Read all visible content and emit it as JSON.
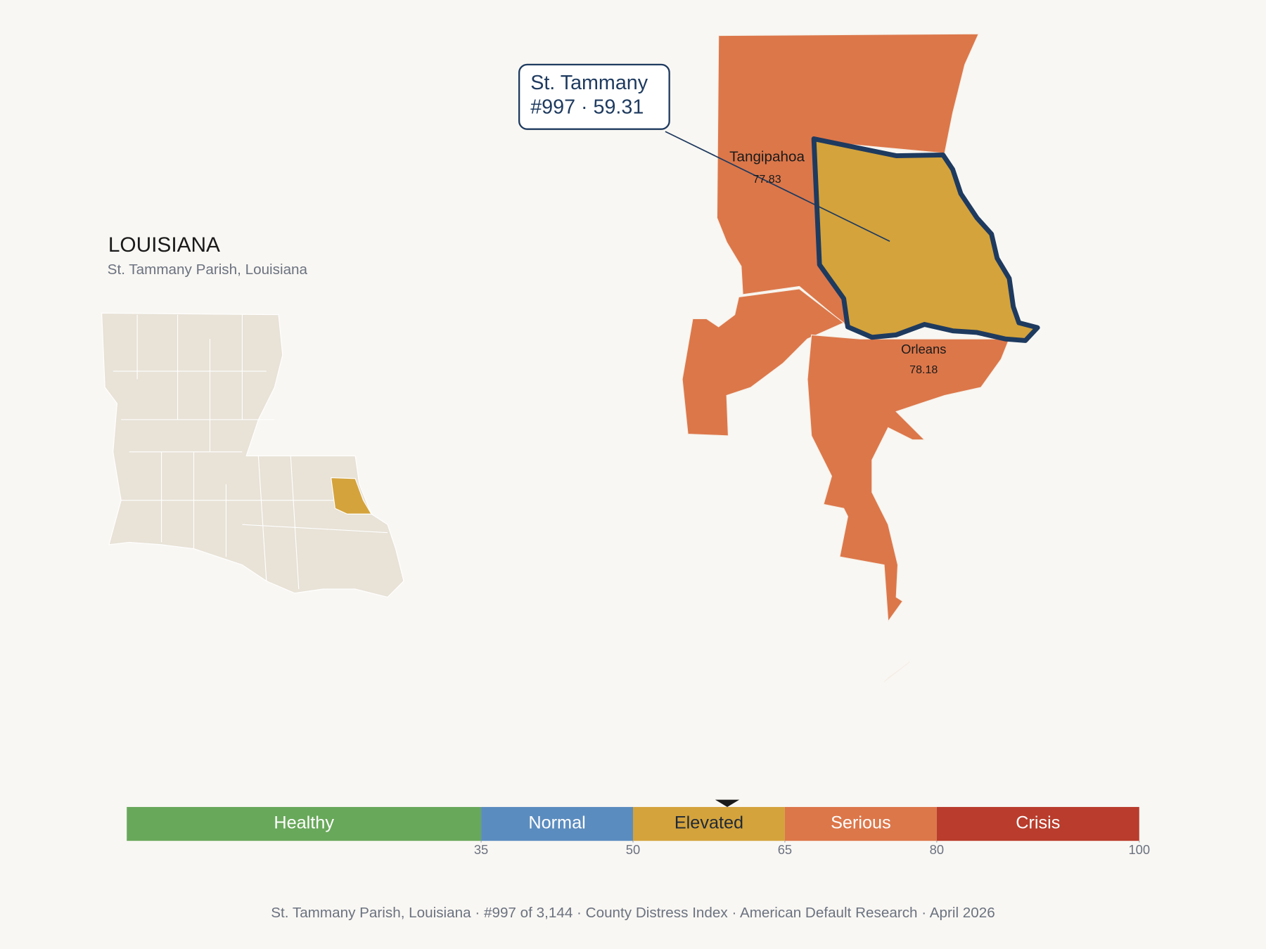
{
  "header": {
    "title": "LOUISIANA",
    "subtitle": "St. Tammany Parish, Louisiana"
  },
  "callout": {
    "name": "St. Tammany",
    "detail": "#997 · 59.31"
  },
  "neighbors": [
    {
      "name": "Tangipahoa",
      "score": 77.83
    },
    {
      "name": "Orleans",
      "score": 78.18
    }
  ],
  "scale": {
    "bands": [
      {
        "name": "Healthy",
        "color": "#68a85a",
        "text_color": "#ffffff"
      },
      {
        "name": "Normal",
        "color": "#5b8cbf",
        "text_color": "#ffffff"
      },
      {
        "name": "Elevated",
        "color": "#d4a33c",
        "text_color": "#1f2937"
      },
      {
        "name": "Serious",
        "color": "#dc774a",
        "text_color": "#ffffff"
      },
      {
        "name": "Crisis",
        "color": "#b93c2c",
        "text_color": "#ffffff"
      }
    ],
    "ticks": [
      35,
      50,
      65,
      80,
      100
    ],
    "score": 59.31
  },
  "footer": "St. Tammany Parish, Louisiana  ·  #997 of 3,144  ·  County Distress Index  ·  American Default Research  ·  April 2026"
}
